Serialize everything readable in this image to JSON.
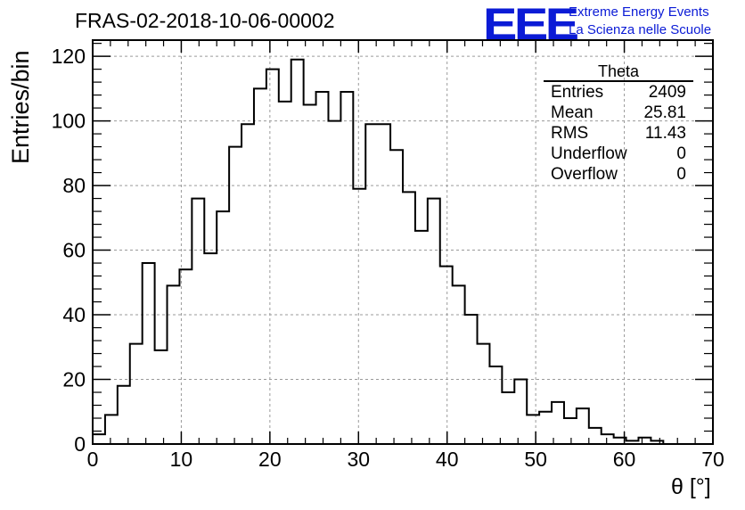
{
  "header": {
    "title": "FRAS-02-2018-10-06-00002",
    "logo": "EEE",
    "logo_line1": "Extreme Energy Events",
    "logo_line2": "La Scienza nelle Scuole"
  },
  "stats": {
    "title": "Theta",
    "rows": [
      {
        "label": "Entries",
        "value": "2409"
      },
      {
        "label": "Mean",
        "value": "25.81"
      },
      {
        "label": "RMS",
        "value": "11.43"
      },
      {
        "label": "Underflow",
        "value": "0"
      },
      {
        "label": "Overflow",
        "value": "0"
      }
    ]
  },
  "colors": {
    "line": "#000000",
    "grid": "#9a9a9a",
    "logo": "#0b1bd6"
  },
  "chart_data": {
    "type": "histogram",
    "title": "FRAS-02-2018-10-06-00002",
    "xlabel": "θ [°]",
    "ylabel": "Entries/bin",
    "xlim": [
      0,
      70
    ],
    "ylim": [
      0,
      125
    ],
    "xticks": [
      0,
      10,
      20,
      30,
      40,
      50,
      60,
      70
    ],
    "yticks": [
      0,
      20,
      40,
      60,
      80,
      100,
      120
    ],
    "bin_width": 1.4,
    "bin_edges_start": 0,
    "values": [
      3,
      9,
      18,
      31,
      56,
      29,
      49,
      54,
      76,
      59,
      72,
      92,
      99,
      110,
      116,
      106,
      119,
      105,
      109,
      100,
      109,
      79,
      99,
      99,
      91,
      78,
      66,
      76,
      55,
      49,
      40,
      31,
      24,
      16,
      20,
      9,
      10,
      13,
      8,
      11,
      5,
      3,
      2,
      1,
      2,
      1,
      0
    ],
    "grid": true,
    "legend": "top-right stats box"
  }
}
